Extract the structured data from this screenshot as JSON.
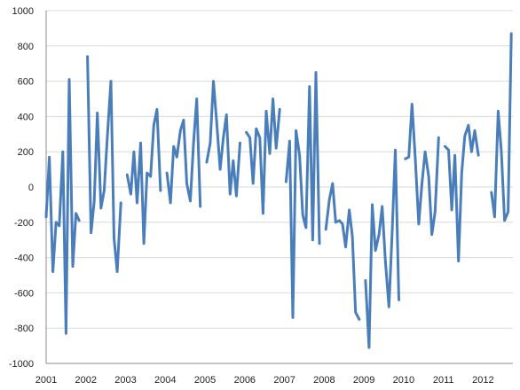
{
  "chart_data": {
    "type": "line",
    "title": "",
    "xlabel": "",
    "ylabel": "",
    "ylim": [
      -1000,
      1000
    ],
    "xlim": [
      2001,
      2012.75
    ],
    "yticks": [
      1000,
      800,
      600,
      400,
      200,
      0,
      -200,
      -400,
      -600,
      -800,
      -1000
    ],
    "xticks": [
      2001,
      2002,
      2003,
      2004,
      2005,
      2006,
      2007,
      2008,
      2009,
      2010,
      2011,
      2012
    ],
    "grid": true,
    "legend": "none",
    "series": [
      {
        "color": "#4a7ebb",
        "points": [
          [
            2001.0,
            -170
          ],
          [
            2001.08,
            170
          ],
          [
            2001.17,
            -480
          ],
          [
            2001.25,
            -200
          ],
          [
            2001.33,
            -220
          ],
          [
            2001.42,
            200
          ],
          [
            2001.5,
            -830
          ],
          [
            2001.58,
            610
          ],
          [
            2001.67,
            -450
          ],
          [
            2001.75,
            -150
          ],
          [
            2001.83,
            -190
          ],
          null,
          [
            2002.04,
            740
          ],
          [
            2002.13,
            -260
          ],
          [
            2002.21,
            -80
          ],
          [
            2002.29,
            420
          ],
          [
            2002.38,
            -120
          ],
          [
            2002.46,
            -20
          ],
          [
            2002.54,
            280
          ],
          [
            2002.63,
            600
          ],
          [
            2002.71,
            -290
          ],
          [
            2002.79,
            -480
          ],
          [
            2002.88,
            -90
          ],
          null,
          [
            2003.04,
            70
          ],
          [
            2003.13,
            -40
          ],
          [
            2003.21,
            200
          ],
          [
            2003.29,
            -90
          ],
          [
            2003.38,
            250
          ],
          [
            2003.46,
            -320
          ],
          [
            2003.54,
            80
          ],
          [
            2003.63,
            60
          ],
          [
            2003.71,
            350
          ],
          [
            2003.79,
            440
          ],
          [
            2003.88,
            -20
          ],
          null,
          [
            2004.04,
            80
          ],
          [
            2004.13,
            -90
          ],
          [
            2004.21,
            230
          ],
          [
            2004.29,
            170
          ],
          [
            2004.38,
            320
          ],
          [
            2004.46,
            380
          ],
          [
            2004.54,
            20
          ],
          [
            2004.63,
            -80
          ],
          [
            2004.71,
            250
          ],
          [
            2004.79,
            500
          ],
          [
            2004.88,
            -110
          ],
          null,
          [
            2005.04,
            140
          ],
          [
            2005.13,
            250
          ],
          [
            2005.21,
            600
          ],
          [
            2005.29,
            380
          ],
          [
            2005.38,
            100
          ],
          [
            2005.46,
            280
          ],
          [
            2005.54,
            410
          ],
          [
            2005.63,
            -40
          ],
          [
            2005.71,
            150
          ],
          [
            2005.79,
            -50
          ],
          [
            2005.88,
            250
          ],
          null,
          [
            2006.04,
            310
          ],
          [
            2006.13,
            280
          ],
          [
            2006.21,
            20
          ],
          [
            2006.29,
            330
          ],
          [
            2006.38,
            280
          ],
          [
            2006.46,
            -150
          ],
          [
            2006.54,
            430
          ],
          [
            2006.63,
            190
          ],
          [
            2006.71,
            500
          ],
          [
            2006.79,
            220
          ],
          [
            2006.88,
            440
          ],
          null,
          [
            2007.04,
            30
          ],
          [
            2007.13,
            260
          ],
          [
            2007.21,
            -740
          ],
          [
            2007.29,
            320
          ],
          [
            2007.38,
            180
          ],
          [
            2007.46,
            -160
          ],
          [
            2007.54,
            -230
          ],
          [
            2007.63,
            570
          ],
          [
            2007.71,
            -300
          ],
          [
            2007.79,
            650
          ],
          [
            2007.88,
            -320
          ],
          null,
          [
            2008.04,
            -240
          ],
          [
            2008.13,
            -70
          ],
          [
            2008.21,
            20
          ],
          [
            2008.29,
            -200
          ],
          [
            2008.38,
            -190
          ],
          [
            2008.46,
            -210
          ],
          [
            2008.54,
            -340
          ],
          [
            2008.63,
            -130
          ],
          [
            2008.71,
            -280
          ],
          [
            2008.79,
            -710
          ],
          [
            2008.88,
            -750
          ],
          null,
          [
            2009.04,
            -530
          ],
          [
            2009.13,
            -910
          ],
          [
            2009.21,
            -100
          ],
          [
            2009.29,
            -360
          ],
          [
            2009.38,
            -270
          ],
          [
            2009.46,
            -110
          ],
          [
            2009.54,
            -420
          ],
          [
            2009.63,
            -680
          ],
          [
            2009.71,
            -260
          ],
          [
            2009.79,
            210
          ],
          [
            2009.88,
            -640
          ],
          null,
          [
            2010.04,
            160
          ],
          [
            2010.13,
            170
          ],
          [
            2010.21,
            470
          ],
          [
            2010.29,
            170
          ],
          [
            2010.38,
            -210
          ],
          [
            2010.46,
            20
          ],
          [
            2010.54,
            200
          ],
          [
            2010.63,
            60
          ],
          [
            2010.71,
            -270
          ],
          [
            2010.79,
            -140
          ],
          [
            2010.88,
            280
          ],
          null,
          [
            2011.04,
            230
          ],
          [
            2011.13,
            210
          ],
          [
            2011.21,
            -130
          ],
          [
            2011.29,
            180
          ],
          [
            2011.38,
            -420
          ],
          [
            2011.46,
            80
          ],
          [
            2011.54,
            290
          ],
          [
            2011.63,
            350
          ],
          [
            2011.71,
            200
          ],
          [
            2011.79,
            320
          ],
          [
            2011.88,
            180
          ],
          null,
          [
            2012.21,
            -30
          ],
          [
            2012.29,
            -170
          ],
          [
            2012.38,
            430
          ],
          [
            2012.46,
            200
          ],
          [
            2012.54,
            -190
          ],
          [
            2012.63,
            -140
          ],
          [
            2012.71,
            870
          ]
        ]
      }
    ]
  }
}
